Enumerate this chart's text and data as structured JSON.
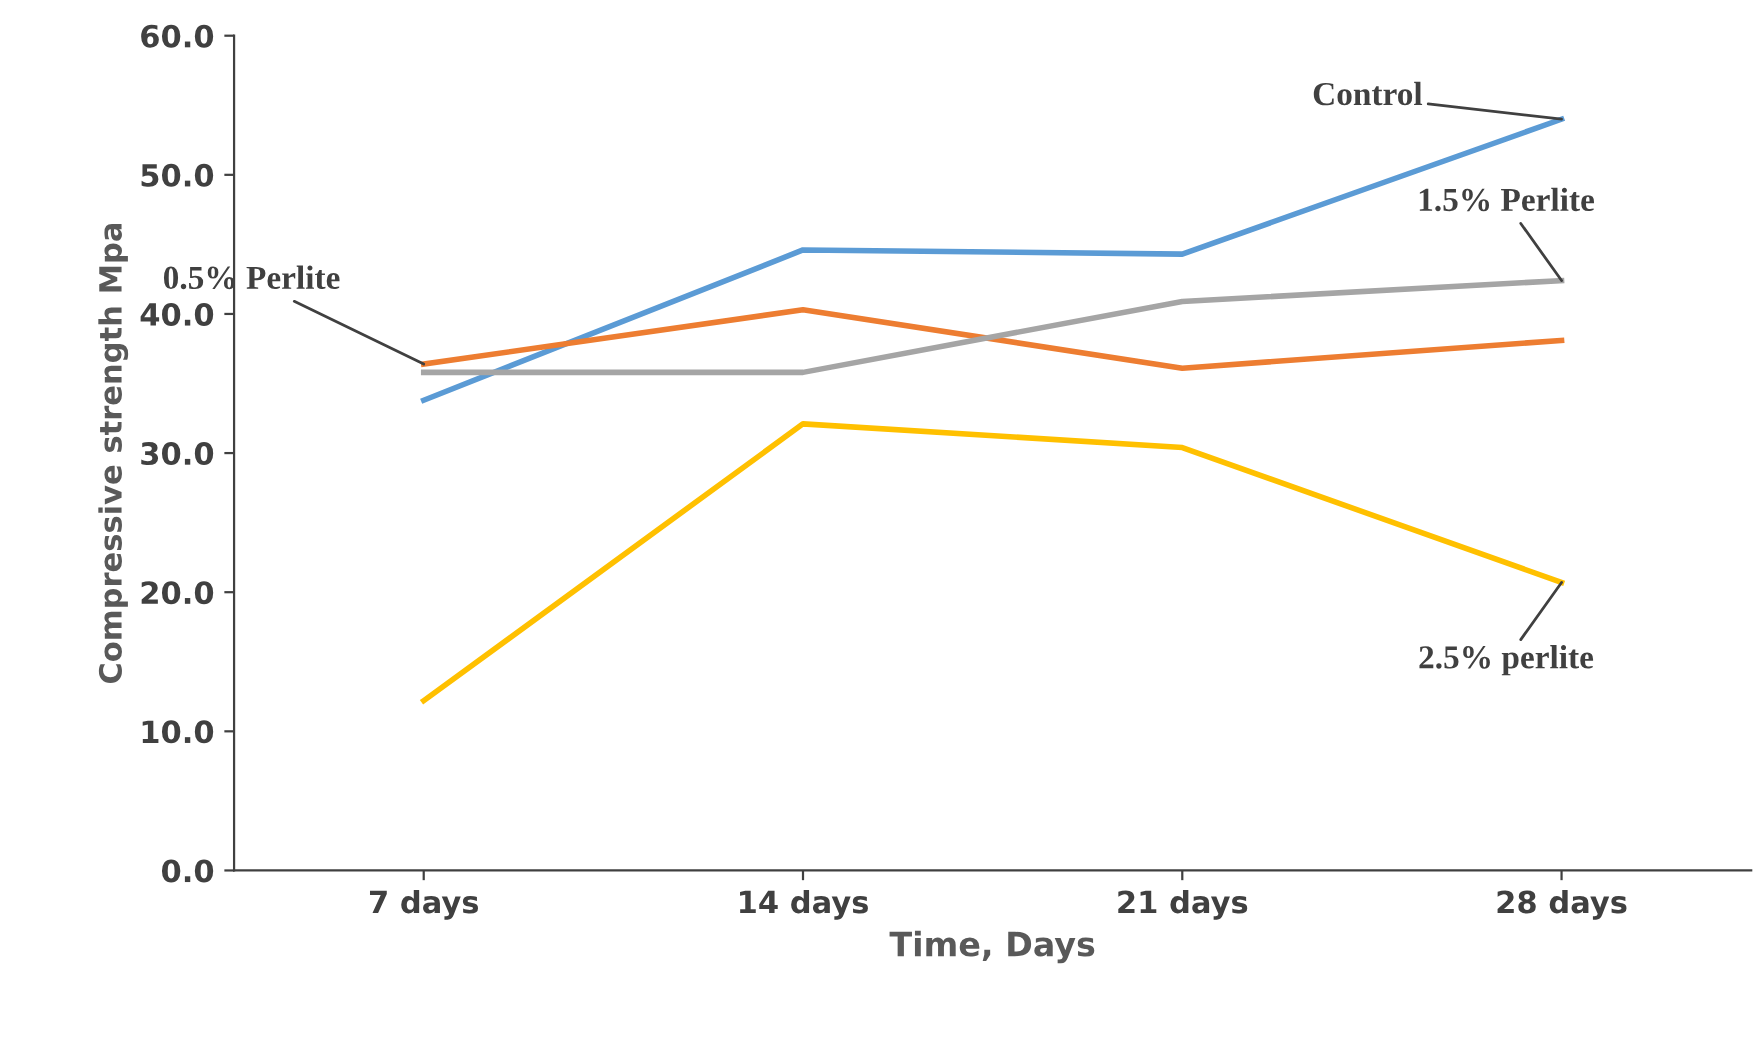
{
  "chart_data": {
    "type": "line",
    "xlabel": "Time, Days",
    "ylabel": "Compressive strength Mpa",
    "categories": [
      "7 days",
      "14 days",
      "21 days",
      "28 days"
    ],
    "series": [
      {
        "name": "Control",
        "color": "#5b9bd5",
        "values": [
          33.8,
          44.6,
          44.3,
          54.0
        ]
      },
      {
        "name": "0.5% Perlite",
        "color": "#ed7d31",
        "values": [
          36.4,
          40.3,
          36.1,
          38.1
        ]
      },
      {
        "name": "1.5% Perlite",
        "color": "#a5a5a5",
        "values": [
          35.8,
          35.8,
          40.9,
          42.4
        ]
      },
      {
        "name": "2.5% perlite",
        "color": "#ffc000",
        "values": [
          12.2,
          32.1,
          30.4,
          20.7
        ]
      }
    ],
    "ylim": [
      0,
      60
    ],
    "yticks": [
      {
        "value": 0,
        "label": "0.0"
      },
      {
        "value": 10,
        "label": "10.0"
      },
      {
        "value": 20,
        "label": "20.0"
      },
      {
        "value": 30,
        "label": "30.0"
      },
      {
        "value": 40,
        "label": "40.0"
      },
      {
        "value": 50,
        "label": "50.0"
      },
      {
        "value": 60,
        "label": "60.0"
      }
    ],
    "grid": false,
    "legend": false,
    "marker": "none",
    "line_style": "solid"
  }
}
